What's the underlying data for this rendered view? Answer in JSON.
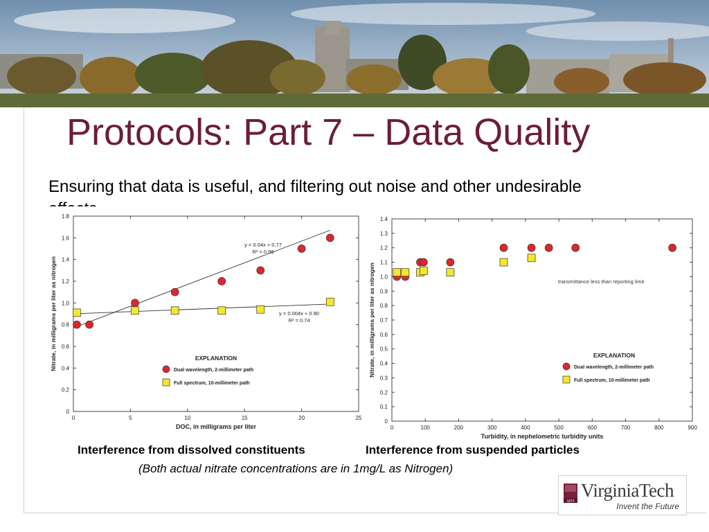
{
  "slide": {
    "title": "Protocols: Part 7 – Data Quality",
    "subtitle": "Ensuring that data is useful, and filtering out noise and other undesirable effects",
    "caption_left": "Interference from dissolved constituents",
    "caption_right": "Interference from suspended particles",
    "note": "(Both actual nitrate concentrations are in 1mg/L as Nitrogen)"
  },
  "logo": {
    "name": "VirginiaTech",
    "tagline": "Invent the Future",
    "seal_text": "1872"
  },
  "colors": {
    "title": "#6b1d3a",
    "red_marker": "#e0252b",
    "yellow_marker": "#f4e82a"
  },
  "chart_data": [
    {
      "type": "scatter",
      "xlabel": "DOC, in milligrams per liter",
      "ylabel": "Nitrate, in milligrams per liter as nitrogen",
      "xlim": [
        0,
        25
      ],
      "ylim": [
        0,
        1.8
      ],
      "xticks": [
        "0",
        "5",
        "10",
        "15",
        "20",
        "25"
      ],
      "yticks": [
        "0",
        "0.2",
        "0.4",
        "0.6",
        "0.8",
        "1.0",
        "1.2",
        "1.4",
        "1.6",
        "1.8"
      ],
      "legend_title": "EXPLANATION",
      "series": [
        {
          "name": "Dual wavelength, 2-millimeter path",
          "marker": "circle",
          "color": "#e0252b",
          "x": [
            0.3,
            1.4,
            5.4,
            8.9,
            13.0,
            16.4,
            20.0,
            22.5
          ],
          "y": [
            0.8,
            0.8,
            1.0,
            1.1,
            1.2,
            1.3,
            1.5,
            1.6
          ],
          "trendline": {
            "equation": "y = 0.04x + 0.77",
            "r2": "R² = 0.99",
            "slope": 0.04,
            "intercept": 0.77
          }
        },
        {
          "name": "Full spectrum, 10-millimeter path",
          "marker": "square",
          "color": "#f4e82a",
          "x": [
            0.3,
            5.4,
            8.9,
            13.0,
            16.4,
            22.5
          ],
          "y": [
            0.91,
            0.93,
            0.93,
            0.93,
            0.94,
            1.01
          ],
          "trendline": {
            "equation": "y = 0.004x + 0.90",
            "r2": "R² = 0.74",
            "slope": 0.004,
            "intercept": 0.9
          }
        }
      ]
    },
    {
      "type": "scatter",
      "xlabel": "Turbidity, in nephelometric turbidity units",
      "ylabel": "Nitrate, in milligrams per liter as nitrogen",
      "xlim": [
        0,
        900
      ],
      "ylim": [
        0,
        1.4
      ],
      "xticks": [
        "0",
        "100",
        "200",
        "300",
        "400",
        "500",
        "600",
        "700",
        "800",
        "900"
      ],
      "yticks": [
        "0",
        "0.1",
        "0.2",
        "0.3",
        "0.4",
        "0.5",
        "0.6",
        "0.7",
        "0.8",
        "0.9",
        "1.0",
        "1.1",
        "1.2",
        "1.3",
        "1.4"
      ],
      "legend_title": "EXPLANATION",
      "annotation": "transmittance less than reporting limit",
      "series": [
        {
          "name": "Dual wavelength, 2-millimeter path",
          "marker": "circle",
          "color": "#e0252b",
          "x": [
            15,
            40,
            85,
            95,
            175,
            335,
            418,
            470,
            550,
            840
          ],
          "y": [
            1.0,
            1.0,
            1.1,
            1.1,
            1.1,
            1.2,
            1.2,
            1.2,
            1.2,
            1.2
          ]
        },
        {
          "name": "Full spectrum, 10-millimeter path",
          "marker": "square",
          "color": "#f4e82a",
          "x": [
            15,
            40,
            85,
            95,
            175,
            335,
            418
          ],
          "y": [
            1.03,
            1.03,
            1.03,
            1.04,
            1.03,
            1.1,
            1.13
          ]
        }
      ]
    }
  ]
}
